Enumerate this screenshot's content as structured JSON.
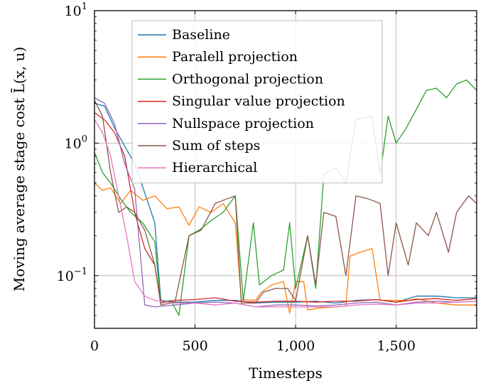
{
  "chart_data": {
    "type": "line",
    "title": "",
    "xlabel": "Timesteps",
    "ylabel": "Moving average stage cost L̄(x, u)",
    "yscale": "log",
    "xlim": [
      0,
      1900
    ],
    "ylim": [
      0.04,
      10
    ],
    "x_ticks": [
      {
        "value": 0,
        "label": "0"
      },
      {
        "value": 500,
        "label": "500"
      },
      {
        "value": 1000,
        "label": "1,000"
      },
      {
        "value": 1500,
        "label": "1,500"
      }
    ],
    "y_ticks": [
      {
        "value": 0.1,
        "base": "10",
        "exp": "−1"
      },
      {
        "value": 1,
        "base": "10",
        "exp": "0"
      },
      {
        "value": 10,
        "base": "10",
        "exp": "1"
      }
    ],
    "grid": true,
    "legend_position": "top-center",
    "series": [
      {
        "name": "Baseline",
        "color": "#1f77b4",
        "points": [
          [
            0,
            2.0
          ],
          [
            50,
            1.9
          ],
          [
            100,
            1.3
          ],
          [
            150,
            0.95
          ],
          [
            200,
            0.7
          ],
          [
            250,
            0.42
          ],
          [
            300,
            0.25
          ],
          [
            330,
            0.065
          ],
          [
            400,
            0.063
          ],
          [
            500,
            0.063
          ],
          [
            600,
            0.065
          ],
          [
            700,
            0.065
          ],
          [
            800,
            0.062
          ],
          [
            900,
            0.063
          ],
          [
            1000,
            0.063
          ],
          [
            1100,
            0.064
          ],
          [
            1200,
            0.062
          ],
          [
            1300,
            0.065
          ],
          [
            1400,
            0.066
          ],
          [
            1500,
            0.063
          ],
          [
            1600,
            0.07
          ],
          [
            1700,
            0.07
          ],
          [
            1800,
            0.068
          ],
          [
            1900,
            0.068
          ]
        ]
      },
      {
        "name": "Paralell projection",
        "color": "#ff7f0e",
        "points": [
          [
            0,
            0.5
          ],
          [
            40,
            0.44
          ],
          [
            80,
            0.46
          ],
          [
            130,
            0.35
          ],
          [
            180,
            0.44
          ],
          [
            240,
            0.37
          ],
          [
            300,
            0.4
          ],
          [
            360,
            0.32
          ],
          [
            420,
            0.33
          ],
          [
            470,
            0.24
          ],
          [
            520,
            0.33
          ],
          [
            580,
            0.3
          ],
          [
            640,
            0.35
          ],
          [
            700,
            0.25
          ],
          [
            730,
            0.066
          ],
          [
            800,
            0.065
          ],
          [
            830,
            0.075
          ],
          [
            880,
            0.085
          ],
          [
            940,
            0.09
          ],
          [
            970,
            0.052
          ],
          [
            1000,
            0.09
          ],
          [
            1040,
            0.09
          ],
          [
            1060,
            0.055
          ],
          [
            1120,
            0.057
          ],
          [
            1200,
            0.058
          ],
          [
            1250,
            0.059
          ],
          [
            1270,
            0.14
          ],
          [
            1320,
            0.15
          ],
          [
            1380,
            0.16
          ],
          [
            1420,
            0.065
          ],
          [
            1500,
            0.065
          ],
          [
            1560,
            0.065
          ],
          [
            1600,
            0.067
          ],
          [
            1700,
            0.062
          ],
          [
            1800,
            0.06
          ],
          [
            1900,
            0.06
          ]
        ]
      },
      {
        "name": "Orthogonal projection",
        "color": "#2ca02c",
        "points": [
          [
            0,
            0.85
          ],
          [
            40,
            0.6
          ],
          [
            80,
            0.5
          ],
          [
            130,
            0.38
          ],
          [
            180,
            0.3
          ],
          [
            240,
            0.25
          ],
          [
            300,
            0.18
          ],
          [
            330,
            0.062
          ],
          [
            380,
            0.065
          ],
          [
            420,
            0.05
          ],
          [
            470,
            0.2
          ],
          [
            520,
            0.22
          ],
          [
            580,
            0.26
          ],
          [
            640,
            0.3
          ],
          [
            700,
            0.4
          ],
          [
            740,
            0.065
          ],
          [
            790,
            0.25
          ],
          [
            820,
            0.085
          ],
          [
            880,
            0.1
          ],
          [
            940,
            0.11
          ],
          [
            970,
            0.25
          ],
          [
            1000,
            0.08
          ],
          [
            1060,
            0.2
          ],
          [
            1100,
            0.08
          ],
          [
            1140,
            0.58
          ],
          [
            1200,
            0.65
          ],
          [
            1250,
            0.5
          ],
          [
            1300,
            1.5
          ],
          [
            1380,
            1.6
          ],
          [
            1420,
            0.58
          ],
          [
            1460,
            1.6
          ],
          [
            1500,
            1.0
          ],
          [
            1550,
            1.3
          ],
          [
            1600,
            1.8
          ],
          [
            1650,
            2.5
          ],
          [
            1700,
            2.6
          ],
          [
            1750,
            2.2
          ],
          [
            1800,
            2.8
          ],
          [
            1850,
            3.0
          ],
          [
            1900,
            2.5
          ]
        ]
      },
      {
        "name": "Singular value projection",
        "color": "#d62728",
        "points": [
          [
            0,
            1.7
          ],
          [
            50,
            1.5
          ],
          [
            100,
            1.2
          ],
          [
            150,
            0.8
          ],
          [
            200,
            0.3
          ],
          [
            250,
            0.16
          ],
          [
            300,
            0.12
          ],
          [
            330,
            0.062
          ],
          [
            400,
            0.065
          ],
          [
            500,
            0.066
          ],
          [
            600,
            0.068
          ],
          [
            700,
            0.064
          ],
          [
            800,
            0.063
          ],
          [
            900,
            0.064
          ],
          [
            1000,
            0.064
          ],
          [
            1100,
            0.063
          ],
          [
            1200,
            0.064
          ],
          [
            1300,
            0.064
          ],
          [
            1400,
            0.066
          ],
          [
            1500,
            0.063
          ],
          [
            1600,
            0.066
          ],
          [
            1700,
            0.067
          ],
          [
            1800,
            0.065
          ],
          [
            1900,
            0.067
          ]
        ]
      },
      {
        "name": "Nullspace projection",
        "color": "#9467bd",
        "points": [
          [
            0,
            2.2
          ],
          [
            50,
            2.0
          ],
          [
            100,
            1.4
          ],
          [
            150,
            0.7
          ],
          [
            200,
            0.45
          ],
          [
            250,
            0.06
          ],
          [
            300,
            0.058
          ],
          [
            400,
            0.06
          ],
          [
            500,
            0.062
          ],
          [
            600,
            0.063
          ],
          [
            700,
            0.062
          ],
          [
            800,
            0.058
          ],
          [
            900,
            0.06
          ],
          [
            1000,
            0.06
          ],
          [
            1100,
            0.059
          ],
          [
            1200,
            0.06
          ],
          [
            1300,
            0.062
          ],
          [
            1400,
            0.063
          ],
          [
            1500,
            0.06
          ],
          [
            1600,
            0.063
          ],
          [
            1700,
            0.064
          ],
          [
            1800,
            0.063
          ],
          [
            1900,
            0.064
          ]
        ]
      },
      {
        "name": "Sum of steps",
        "color": "#8c564b",
        "points": [
          [
            0,
            2.1
          ],
          [
            40,
            1.6
          ],
          [
            80,
            0.6
          ],
          [
            120,
            0.3
          ],
          [
            160,
            0.33
          ],
          [
            200,
            0.3
          ],
          [
            250,
            0.22
          ],
          [
            300,
            0.12
          ],
          [
            330,
            0.06
          ],
          [
            400,
            0.063
          ],
          [
            470,
            0.2
          ],
          [
            530,
            0.22
          ],
          [
            600,
            0.35
          ],
          [
            660,
            0.38
          ],
          [
            700,
            0.4
          ],
          [
            730,
            0.062
          ],
          [
            800,
            0.062
          ],
          [
            840,
            0.075
          ],
          [
            900,
            0.08
          ],
          [
            960,
            0.08
          ],
          [
            1000,
            0.065
          ],
          [
            1060,
            0.2
          ],
          [
            1100,
            0.085
          ],
          [
            1140,
            0.3
          ],
          [
            1200,
            0.28
          ],
          [
            1250,
            0.1
          ],
          [
            1300,
            0.4
          ],
          [
            1360,
            0.38
          ],
          [
            1420,
            0.35
          ],
          [
            1460,
            0.1
          ],
          [
            1500,
            0.25
          ],
          [
            1560,
            0.12
          ],
          [
            1600,
            0.25
          ],
          [
            1660,
            0.2
          ],
          [
            1700,
            0.3
          ],
          [
            1760,
            0.15
          ],
          [
            1800,
            0.3
          ],
          [
            1860,
            0.4
          ],
          [
            1900,
            0.35
          ]
        ]
      },
      {
        "name": "Hierarchical",
        "color": "#e377c2",
        "points": [
          [
            0,
            1.5
          ],
          [
            40,
            1.2
          ],
          [
            80,
            0.8
          ],
          [
            120,
            0.4
          ],
          [
            160,
            0.2
          ],
          [
            200,
            0.09
          ],
          [
            250,
            0.07
          ],
          [
            300,
            0.065
          ],
          [
            400,
            0.062
          ],
          [
            500,
            0.062
          ],
          [
            600,
            0.06
          ],
          [
            700,
            0.062
          ],
          [
            800,
            0.058
          ],
          [
            900,
            0.058
          ],
          [
            1000,
            0.058
          ],
          [
            1100,
            0.058
          ],
          [
            1200,
            0.058
          ],
          [
            1300,
            0.06
          ],
          [
            1400,
            0.061
          ],
          [
            1500,
            0.06
          ],
          [
            1600,
            0.062
          ],
          [
            1700,
            0.062
          ],
          [
            1800,
            0.063
          ],
          [
            1900,
            0.064
          ]
        ]
      }
    ]
  }
}
